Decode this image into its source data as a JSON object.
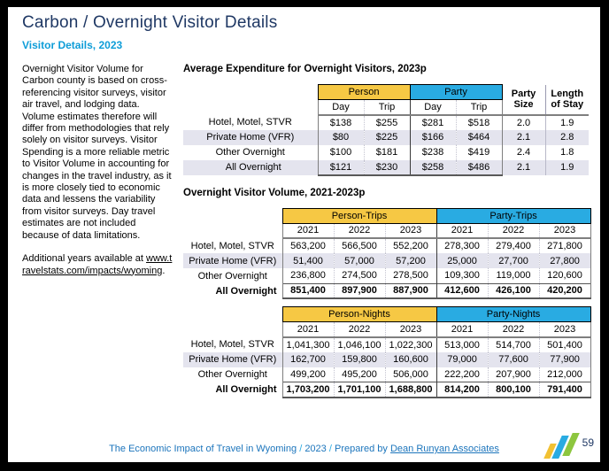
{
  "header": {
    "title": "Carbon / Overnight Visitor Details",
    "subtitle": "Visitor Details, 2023"
  },
  "sidebar": {
    "methodology_text": "Overnight Visitor Volume for Carbon county is based on cross-referencing visitor surveys, visitor air travel, and lodging data. Volume estimates therefore will differ from methodologies that rely solely on visitor surveys. Visitor Spending is a more reliable metric to Visitor Volume in accounting for changes in the travel industry, as it is more closely tied to economic data and lessens the variability from visitor surveys. Day travel estimates are not included because of data limitations.",
    "additional_years_prefix": "Additional years available at ",
    "link_text": "www.travelstats.com/impacts/wyoming",
    "additional_years_suffix": "."
  },
  "expenditure_table": {
    "title": "Average Expenditure for Overnight Visitors, 2023p",
    "person_group_label": "Person",
    "party_group_label": "Party",
    "sub_headers": [
      "Day",
      "Trip",
      "Day",
      "Trip"
    ],
    "party_size_header": "Party Size",
    "length_of_stay_header": "Length of Stay",
    "rows": [
      {
        "label": "Hotel, Motel, STVR",
        "values": [
          "$138",
          "$255",
          "$281",
          "$518",
          "2.0",
          "1.9"
        ]
      },
      {
        "label": "Private Home (VFR)",
        "values": [
          "$80",
          "$225",
          "$166",
          "$464",
          "2.1",
          "2.8"
        ]
      },
      {
        "label": "Other Overnight",
        "values": [
          "$100",
          "$181",
          "$238",
          "$419",
          "2.4",
          "1.8"
        ]
      },
      {
        "label": "All Overnight",
        "values": [
          "$121",
          "$230",
          "$258",
          "$486",
          "2.1",
          "1.9"
        ]
      }
    ]
  },
  "volume_section": {
    "title": "Overnight Visitor Volume, 2021-2023p",
    "trips_table": {
      "person_group_label": "Person-Trips",
      "party_group_label": "Party-Trips",
      "years": [
        "2021",
        "2022",
        "2023",
        "2021",
        "2022",
        "2023"
      ],
      "rows": [
        {
          "label": "Hotel, Motel, STVR",
          "values": [
            "563,200",
            "566,500",
            "552,200",
            "278,300",
            "279,400",
            "271,800"
          ]
        },
        {
          "label": "Private Home (VFR)",
          "values": [
            "51,400",
            "57,000",
            "57,200",
            "25,000",
            "27,700",
            "27,800"
          ]
        },
        {
          "label": "Other Overnight",
          "values": [
            "236,800",
            "274,500",
            "278,500",
            "109,300",
            "119,000",
            "120,600"
          ]
        },
        {
          "label": "All Overnight",
          "values": [
            "851,400",
            "897,900",
            "887,900",
            "412,600",
            "426,100",
            "420,200"
          ]
        }
      ]
    },
    "nights_table": {
      "person_group_label": "Person-Nights",
      "party_group_label": "Party-Nights",
      "years": [
        "2021",
        "2022",
        "2023",
        "2021",
        "2022",
        "2023"
      ],
      "rows": [
        {
          "label": "Hotel, Motel, STVR",
          "values": [
            "1,041,300",
            "1,046,100",
            "1,022,300",
            "513,000",
            "514,700",
            "501,400"
          ]
        },
        {
          "label": "Private Home (VFR)",
          "values": [
            "162,700",
            "159,800",
            "160,600",
            "79,000",
            "77,600",
            "77,900"
          ]
        },
        {
          "label": "Other Overnight",
          "values": [
            "499,200",
            "495,200",
            "506,000",
            "222,200",
            "207,900",
            "212,000"
          ]
        },
        {
          "label": "All Overnight",
          "values": [
            "1,703,200",
            "1,701,100",
            "1,688,800",
            "814,200",
            "800,100",
            "791,400"
          ]
        }
      ]
    }
  },
  "footer": {
    "text_before_year": "The Economic Impact of Travel in Wyoming",
    "separator": "/",
    "year": "2023",
    "prepared_by": "Prepared by",
    "company_link": "Dean Runyan Associates",
    "page_number": "59"
  },
  "colors": {
    "person_header_yellow": "#F6C844",
    "party_header_blue": "#29ABE2",
    "title_navy": "#1F3864",
    "subtitle_cyan": "#0E9DD8",
    "footer_blue": "#1C75BC",
    "row_shade": "#E4E4EE",
    "logo_yellow": "#F2C132",
    "logo_blue": "#29ABE2",
    "logo_green": "#8DC63F"
  }
}
